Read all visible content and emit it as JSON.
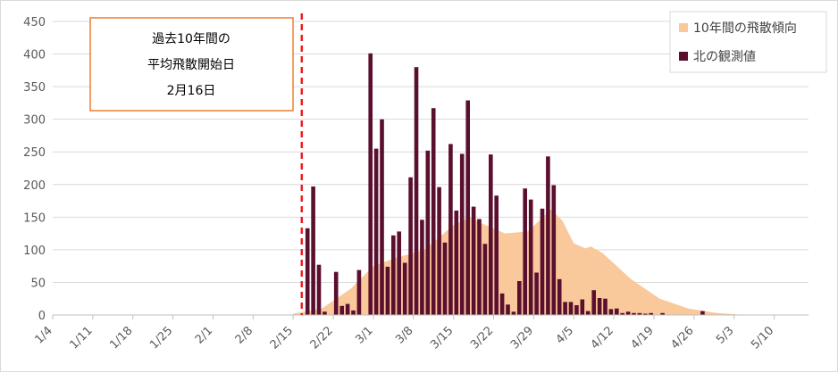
{
  "chart_data": {
    "type": "bar",
    "title": "",
    "xlabel": "",
    "ylabel": "",
    "ylim": [
      0,
      450
    ],
    "y_ticks": [
      0,
      50,
      100,
      150,
      200,
      250,
      300,
      350,
      400,
      450
    ],
    "x_start": "1/4",
    "x_end": "5/16",
    "x_tick_labels": [
      "1/4",
      "1/11",
      "1/18",
      "1/25",
      "2/1",
      "2/8",
      "2/15",
      "2/22",
      "3/1",
      "3/8",
      "3/15",
      "3/22",
      "3/29",
      "4/5",
      "4/12",
      "4/19",
      "4/26",
      "5/3",
      "5/10"
    ],
    "grid": "horizontal",
    "legend_position": "top-right",
    "series": [
      {
        "name": "10年間の飛散傾向",
        "kind": "area",
        "color": "#f9c99b",
        "x": [
          "2/15",
          "2/20",
          "2/25",
          "3/1",
          "3/5",
          "3/10",
          "3/15",
          "3/18",
          "3/20",
          "3/24",
          "3/28",
          "4/1",
          "4/3",
          "4/5",
          "4/7",
          "4/8",
          "4/10",
          "4/15",
          "4/20",
          "4/25",
          "4/30",
          "5/5"
        ],
        "values": [
          2,
          10,
          40,
          75,
          88,
          100,
          138,
          150,
          140,
          125,
          128,
          162,
          145,
          110,
          102,
          105,
          95,
          55,
          25,
          10,
          3,
          0
        ]
      },
      {
        "name": "北の観測値",
        "kind": "bar",
        "color": "#5b0f2e",
        "x": [
          "2/17",
          "2/18",
          "2/19",
          "2/20",
          "2/22",
          "2/23",
          "2/24",
          "2/25",
          "2/26",
          "2/28",
          "3/1",
          "3/2",
          "3/3",
          "3/4",
          "3/5",
          "3/6",
          "3/7",
          "3/8",
          "3/9",
          "3/10",
          "3/11",
          "3/12",
          "3/13",
          "3/14",
          "3/15",
          "3/16",
          "3/17",
          "3/18",
          "3/19",
          "3/20",
          "3/21",
          "3/22",
          "3/23",
          "3/24",
          "3/25",
          "3/26",
          "3/27",
          "3/28",
          "3/29",
          "3/30",
          "3/31",
          "4/1",
          "4/2",
          "4/3",
          "4/4",
          "4/5",
          "4/6",
          "4/7",
          "4/8",
          "4/9",
          "4/10",
          "4/11",
          "4/12",
          "4/13",
          "4/14",
          "4/15",
          "4/16",
          "4/17",
          "4/18",
          "4/20",
          "4/27"
        ],
        "values": [
          133,
          197,
          77,
          5,
          66,
          14,
          17,
          7,
          69,
          401,
          255,
          300,
          74,
          122,
          128,
          80,
          211,
          380,
          146,
          252,
          317,
          196,
          111,
          262,
          160,
          247,
          329,
          166,
          147,
          109,
          246,
          183,
          33,
          16,
          5,
          52,
          194,
          177,
          65,
          163,
          243,
          199,
          55,
          20,
          20,
          15,
          24,
          6,
          38,
          26,
          25,
          9,
          10,
          3,
          5,
          3,
          3,
          2,
          3,
          3,
          6
        ]
      }
    ]
  },
  "annotation": {
    "lines": [
      "過去10年間の",
      "平均飛散開始日",
      "2月16日"
    ],
    "marker_date": "2/16",
    "border_color": "#ed7d31",
    "line_color": "#e8201f"
  },
  "legend": {
    "items": [
      {
        "label": "10年間の飛散傾向",
        "color": "#f9c99b"
      },
      {
        "label": "北の観測値",
        "color": "#5b0f2e"
      }
    ]
  }
}
